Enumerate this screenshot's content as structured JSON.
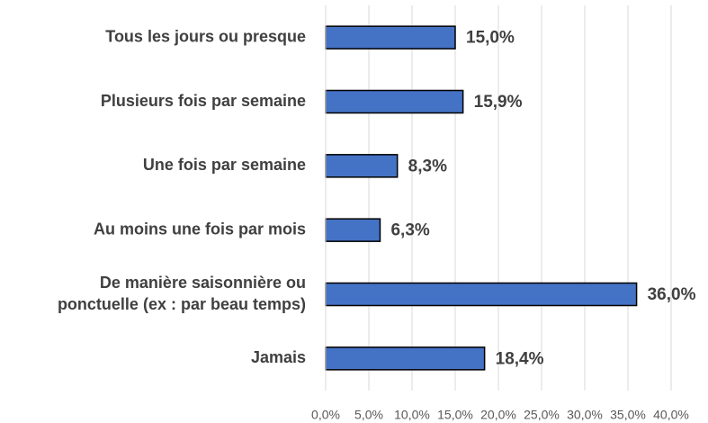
{
  "chart_data": {
    "type": "barh",
    "categories": [
      "Tous les jours ou presque",
      "Plusieurs fois par semaine",
      "Une fois par semaine",
      "Au moins une fois par mois",
      "De manière saisonnière ou\nponctuelle (ex : par beau temps)",
      "Jamais"
    ],
    "values": [
      15.0,
      15.9,
      8.3,
      6.3,
      36.0,
      18.4
    ],
    "value_labels": [
      "15,0%",
      "15,9%",
      "8,3%",
      "6,3%",
      "36,0%",
      "18,4%"
    ],
    "color": "#4472c4",
    "xlim": [
      0,
      40
    ],
    "xticks": [
      {
        "value": 0,
        "label": "0,0%"
      },
      {
        "value": 5,
        "label": "5,0%"
      },
      {
        "value": 10,
        "label": "10,0%"
      },
      {
        "value": 15,
        "label": "15,0%"
      },
      {
        "value": 20,
        "label": "20,0%"
      },
      {
        "value": 25,
        "label": "25,0%"
      },
      {
        "value": 30,
        "label": "30,0%"
      },
      {
        "value": 35,
        "label": "35,0%"
      },
      {
        "value": 40,
        "label": "40,0%"
      }
    ],
    "grid": true
  }
}
